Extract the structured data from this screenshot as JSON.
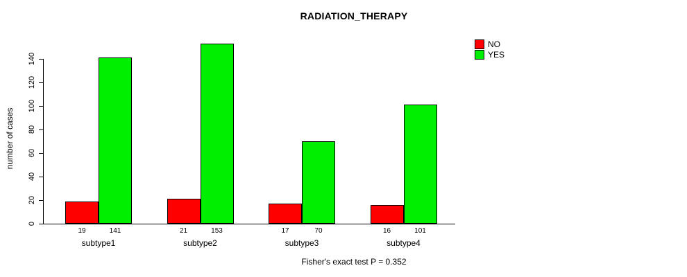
{
  "chart_data": {
    "type": "bar",
    "title": "RADIATION_THERAPY",
    "xlabel": "",
    "ylabel": "number of cases",
    "categories": [
      "subtype1",
      "subtype2",
      "subtype3",
      "subtype4"
    ],
    "series": [
      {
        "name": "NO",
        "color": "#ff0000",
        "values": [
          19,
          21,
          17,
          16
        ]
      },
      {
        "name": "YES",
        "color": "#00ee00",
        "values": [
          141,
          153,
          70,
          101
        ]
      }
    ],
    "bar_value_labels": {
      "subtype1": [
        19,
        141
      ],
      "subtype2": [
        21,
        153
      ],
      "subtype3": [
        17,
        70
      ],
      "subtype4": [
        16,
        101
      ]
    },
    "ylim": [
      0,
      160
    ],
    "yticks": [
      0,
      20,
      40,
      60,
      80,
      100,
      120,
      140
    ],
    "grid": false,
    "legend": {
      "position": "top-right",
      "entries": [
        "NO",
        "YES"
      ]
    },
    "annotation": "Fisher's exact test P = 0.352",
    "axis_color": "#000000",
    "background_color": "#ffffff"
  }
}
